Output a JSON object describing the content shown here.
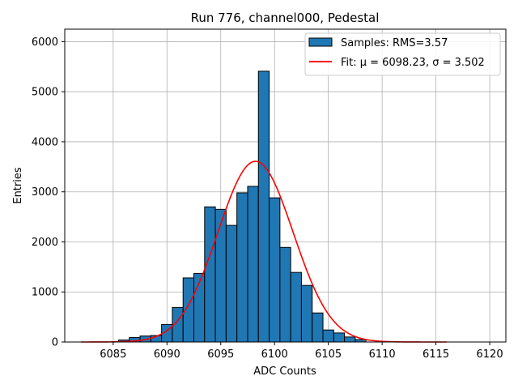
{
  "chart_data": {
    "type": "bar",
    "title": "Run 776, channel000, Pedestal",
    "xlabel": "ADC Counts",
    "ylabel": "Entries",
    "xlim": [
      6080.5,
      6121.5
    ],
    "ylim": [
      0,
      6250
    ],
    "xticks": [
      6085,
      6090,
      6095,
      6100,
      6105,
      6110,
      6115,
      6120
    ],
    "yticks": [
      0,
      1000,
      2000,
      3000,
      4000,
      5000,
      6000
    ],
    "grid": true,
    "legend_position": "top-right",
    "series": [
      {
        "name": "Samples: RMS=3.57",
        "kind": "histogram",
        "color": "#1f77b4",
        "edge_color": "#000000",
        "bin_width": 1,
        "bins": [
          6086,
          6087,
          6088,
          6089,
          6090,
          6091,
          6092,
          6093,
          6094,
          6095,
          6096,
          6097,
          6098,
          6099,
          6100,
          6101,
          6102,
          6103,
          6104,
          6105,
          6106,
          6107,
          6108
        ],
        "values": [
          40,
          90,
          120,
          130,
          350,
          690,
          1280,
          1370,
          2700,
          2650,
          2330,
          2980,
          3110,
          5410,
          2880,
          1890,
          1390,
          1130,
          580,
          240,
          180,
          100,
          50
        ]
      },
      {
        "name": "Fit: μ = 6098.23, σ = 3.502",
        "kind": "gaussian",
        "color": "#ff0000",
        "mu": 6098.23,
        "sigma": 3.502,
        "amplitude": 3610,
        "x_range": [
          6082,
          6116
        ]
      }
    ],
    "legend": [
      {
        "label": "Samples: RMS=3.57",
        "kind": "patch"
      },
      {
        "label": "Fit: μ = 6098.23, σ = 3.502",
        "kind": "line"
      }
    ]
  }
}
